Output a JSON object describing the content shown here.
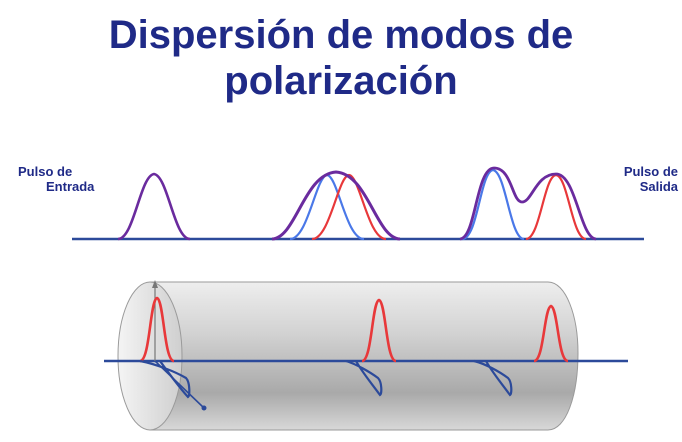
{
  "title": {
    "line1": "Dispersión de modos de",
    "line2": "polarización"
  },
  "labels": {
    "input_line1": "Pulso de",
    "input_line2": "Entrada",
    "output_line1": "Pulso de",
    "output_line2": "Salida"
  },
  "colors": {
    "title": "#1f2a87",
    "axis": "#2c4a9a",
    "mode_red": "#e8383a",
    "mode_blue": "#4a78e8",
    "combined_purple": "#6a2b9e",
    "fiber_body": "#c9c9c9"
  }
}
